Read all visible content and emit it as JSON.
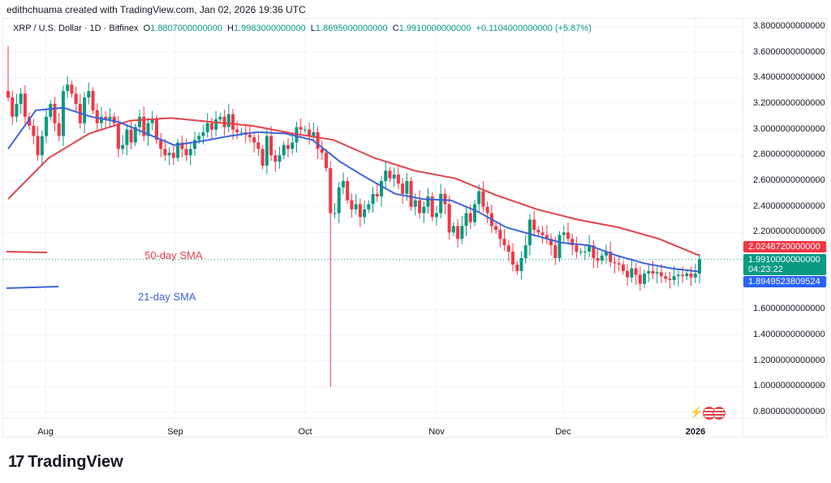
{
  "header": {
    "credit": "edithchuama created with TradingView.com, Jan 02, 2026 19:36 UTC"
  },
  "legend": {
    "symbol": "XRP / U.S. Dollar · 1D · Bitfinex",
    "o_label": "O",
    "o": "1.8807000000000",
    "h_label": "H",
    "h": "1.9983000000000",
    "l_label": "L",
    "l": "1.8695000000000",
    "c_label": "C",
    "c": "1.9910000000000",
    "change": "+0.1104000000000 (+5.87%)"
  },
  "chart_data": {
    "type": "candlestick",
    "ylim": [
      0.8,
      3.8
    ],
    "y_ticks": [
      "3.8000000000000",
      "3.6000000000000",
      "3.4000000000000",
      "3.2000000000000",
      "3.0000000000000",
      "2.8000000000000",
      "2.6000000000000",
      "2.4000000000000",
      "2.2000000000000",
      "1.6000000000000",
      "1.4000000000000",
      "1.2000000000000",
      "1.0000000000000",
      "0.8000000000000"
    ],
    "y_tick_values": [
      3.8,
      3.6,
      3.4,
      3.2,
      3.0,
      2.8,
      2.6,
      2.4,
      2.2,
      1.6,
      1.4,
      1.2,
      1.0,
      0.8
    ],
    "x_ticks": [
      "Aug",
      "Sep",
      "Oct",
      "Nov",
      "Dec",
      "2026"
    ],
    "first_open": 3.3,
    "close": [
      3.25,
      3.1,
      3.2,
      3.28,
      3.1,
      3.03,
      2.95,
      2.8,
      2.95,
      3.1,
      3.2,
      3.05,
      2.95,
      3.3,
      3.35,
      3.28,
      3.2,
      3.05,
      3.25,
      3.3,
      3.15,
      3.05,
      3.1,
      3.08,
      3.1,
      3.05,
      2.85,
      2.88,
      3.0,
      2.9,
      3.02,
      3.1,
      2.95,
      3.05,
      3.08,
      2.92,
      2.85,
      2.8,
      2.82,
      2.78,
      2.9,
      2.85,
      2.8,
      2.85,
      2.92,
      2.95,
      2.98,
      3.05,
      3.0,
      3.08,
      3.1,
      3.02,
      3.12,
      3.0,
      2.98,
      2.98,
      2.96,
      2.94,
      2.9,
      2.85,
      2.72,
      2.95,
      2.8,
      2.75,
      2.8,
      2.88,
      2.85,
      2.9,
      3.02,
      3.0,
      3.0,
      2.95,
      2.98,
      2.85,
      2.82,
      2.7,
      2.35,
      2.35,
      2.55,
      2.6,
      2.45,
      2.38,
      2.42,
      2.32,
      2.38,
      2.42,
      2.5,
      2.48,
      2.6,
      2.68,
      2.62,
      2.65,
      2.58,
      2.5,
      2.6,
      2.4,
      2.45,
      2.35,
      2.4,
      2.48,
      2.32,
      2.35,
      2.5,
      2.42,
      2.2,
      2.25,
      2.15,
      2.25,
      2.35,
      2.28,
      2.42,
      2.52,
      2.4,
      2.35,
      2.25,
      2.22,
      2.15,
      2.1,
      2.05,
      1.95,
      1.9,
      2.0,
      2.1,
      2.3,
      2.22,
      2.2,
      2.18,
      2.15,
      2.1,
      2.0,
      2.18,
      2.2,
      2.15,
      2.1,
      2.05,
      2.05,
      2.05,
      2.1,
      2.0,
      1.98,
      2.02,
      2.05,
      1.97,
      1.96,
      1.95,
      1.9,
      1.85,
      1.92,
      1.87,
      1.8,
      1.88,
      1.9,
      1.88,
      1.89,
      1.86,
      1.84,
      1.83,
      1.86,
      1.87,
      1.86,
      1.88,
      1.85,
      1.88,
      1.991
    ],
    "extreme_wicks": [
      {
        "candle": 0,
        "high": 3.65
      },
      {
        "candle": 76,
        "low": 1.0
      }
    ],
    "series": [
      {
        "name": "50-day SMA",
        "color": "#e0434b",
        "values": [
          2.46,
          2.78,
          2.97,
          3.07,
          3.09,
          3.06,
          3.03,
          2.97,
          2.92,
          2.78,
          2.68,
          2.62,
          2.49,
          2.38,
          2.3,
          2.24,
          2.15,
          2.02
        ]
      },
      {
        "name": "21-day SMA",
        "color": "#3d63d9",
        "values": [
          2.85,
          3.15,
          3.17,
          3.1,
          3.06,
          2.97,
          2.88,
          2.91,
          2.95,
          2.98,
          2.97,
          2.92,
          2.75,
          2.62,
          2.5,
          2.46,
          2.45,
          2.36,
          2.24,
          2.18,
          2.12,
          2.1,
          2.02,
          1.96,
          1.92,
          1.895
        ]
      }
    ],
    "colors": {
      "up": "#089981",
      "down": "#f23645"
    },
    "current_price_line": 1.991
  },
  "price_tags": {
    "sma50": "2.0248720000000",
    "close": "1.9910000000000",
    "countdown": "04:23:22",
    "sma21": "1.8949523809524"
  },
  "annotations": {
    "sma50": "50-day SMA",
    "sma21": "21-day SMA"
  },
  "footer": {
    "logo_text": "TradingView"
  }
}
